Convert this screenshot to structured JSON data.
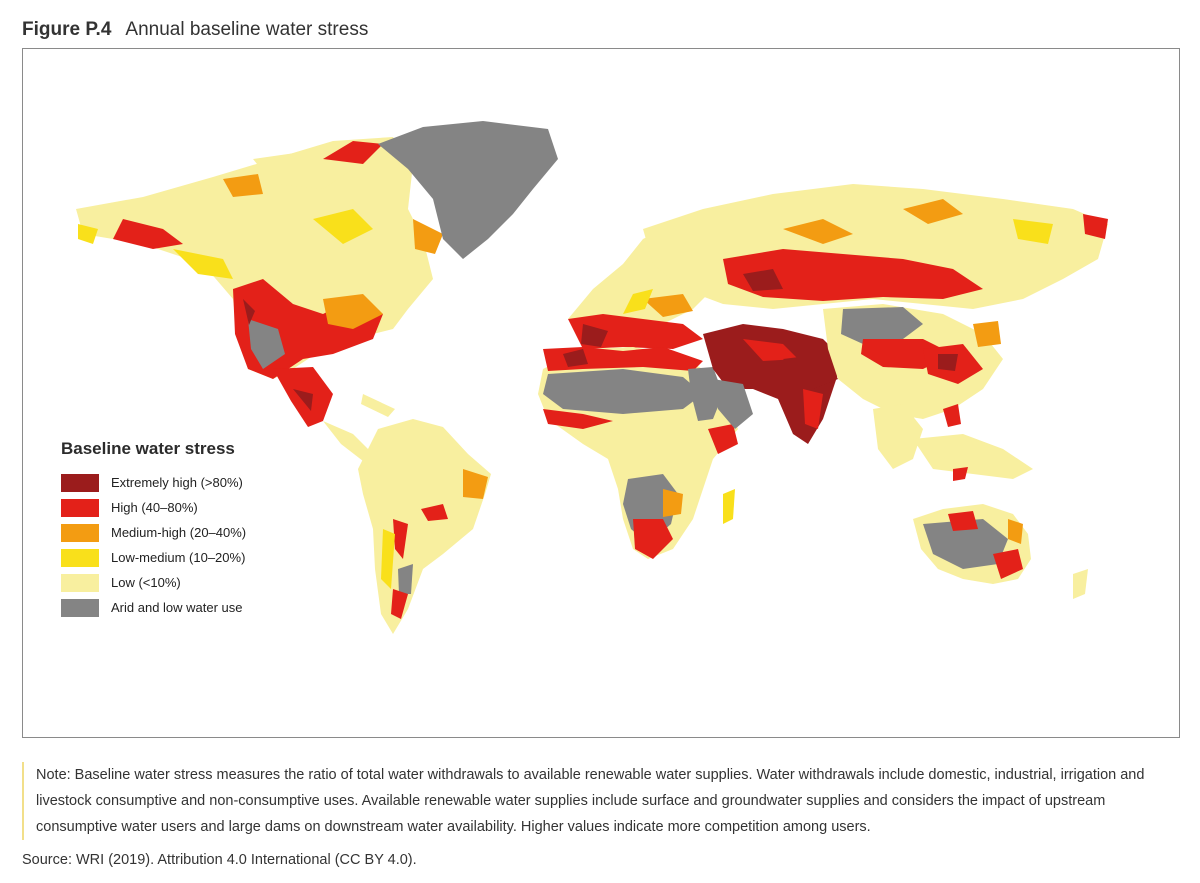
{
  "figure": {
    "number": "Figure P.4",
    "title": "Annual baseline water stress"
  },
  "legend": {
    "title": "Baseline water stress",
    "items": [
      {
        "label": "Extremely high (>80%)",
        "color": "#9b1c1c"
      },
      {
        "label": "High (40–80%)",
        "color": "#e32119"
      },
      {
        "label": "Medium-high (20–40%)",
        "color": "#f39c12"
      },
      {
        "label": "Low-medium (10–20%)",
        "color": "#f9e01b"
      },
      {
        "label": "Low (<10%)",
        "color": "#f8ef9f"
      },
      {
        "label": "Arid and low water use",
        "color": "#848484"
      }
    ]
  },
  "note": "Note: Baseline water stress measures the ratio of total water withdrawals to available renewable water supplies. Water withdrawals include domestic, industrial, irrigation and livestock consumptive and non-consumptive uses. Available renewable water supplies include surface and groundwater supplies and considers the impact of upstream consumptive water users and large dams on downstream water availability. Higher values indicate more competition among users.",
  "source": "Source: WRI (2019). Attribution 4.0 International (CC BY 4.0)."
}
